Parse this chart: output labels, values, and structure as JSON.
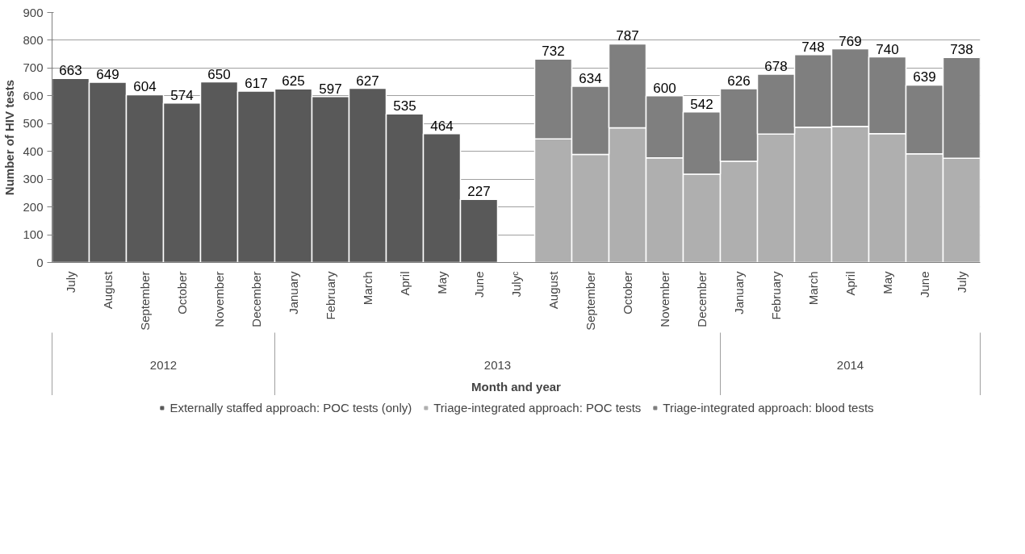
{
  "chart_data": {
    "type": "bar",
    "stacked": true,
    "xlabel": "Month and year",
    "ylabel": "Number of HIV tests",
    "categories": [
      "July",
      "August",
      "September",
      "October",
      "November",
      "December",
      "January",
      "February",
      "March",
      "April",
      "May",
      "June",
      "Julyᶜ",
      "August",
      "September",
      "October",
      "November",
      "December",
      "January",
      "February",
      "March",
      "April",
      "May",
      "June",
      "July"
    ],
    "series": [
      {
        "name": "Externally staffed approach: POC tests (only)",
        "color": "#595959",
        "values": [
          663,
          649,
          604,
          574,
          650,
          617,
          625,
          597,
          627,
          535,
          464,
          227,
          null,
          null,
          null,
          null,
          null,
          null,
          null,
          null,
          null,
          null,
          null,
          null,
          null
        ]
      },
      {
        "name": "Triage-integrated approach: POC tests",
        "color": "#afafaf",
        "values": [
          null,
          null,
          null,
          null,
          null,
          null,
          null,
          null,
          null,
          null,
          null,
          null,
          null,
          445,
          389,
          485,
          377,
          318,
          364,
          462,
          487,
          490,
          464,
          391,
          375
        ]
      },
      {
        "name": "Triage-integrated approach: blood tests",
        "color": "#7f7f7f",
        "values": [
          null,
          null,
          null,
          null,
          null,
          null,
          null,
          null,
          null,
          null,
          null,
          null,
          null,
          287,
          245,
          302,
          223,
          224,
          262,
          216,
          261,
          279,
          276,
          248,
          363
        ]
      }
    ],
    "totals": [
      "663",
      "649",
      "604",
      "574",
      "650",
      "617",
      "625",
      "597",
      "627",
      "535",
      "464",
      "227",
      null,
      "732",
      "634",
      "787",
      "600",
      "542",
      "626",
      "678",
      "748",
      "769",
      "740",
      "639",
      "738"
    ],
    "annotations": [
      "2012",
      "2013",
      "2014"
    ],
    "ylim": [
      0,
      900
    ],
    "yticks": [
      0,
      100,
      200,
      300,
      400,
      500,
      600,
      700,
      800,
      900
    ],
    "grid": "y",
    "legend": "bottom"
  }
}
